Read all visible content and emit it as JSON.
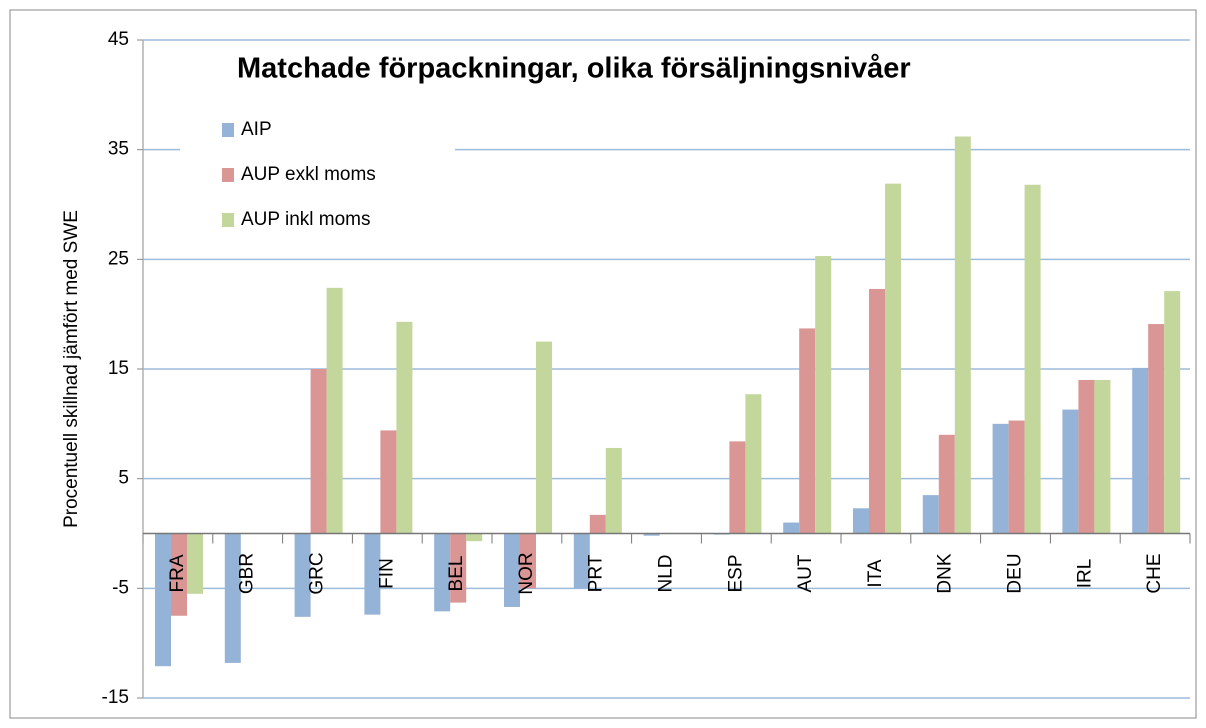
{
  "chart_data": {
    "type": "bar",
    "title": "Matchade förpackningar, olika försäljningsnivåer",
    "y_label": "Procentuell skillnad jämfört med SWE",
    "categories": [
      "FRA",
      "GBR",
      "GRC",
      "FIN",
      "BEL",
      "NOR",
      "PRT",
      "NLD",
      "ESP",
      "AUT",
      "ITA",
      "DNK",
      "DEU",
      "IRL",
      "CHE"
    ],
    "series": [
      {
        "name": "AIP",
        "color": "#95b3d7",
        "values": [
          -12.1,
          -11.8,
          -7.6,
          -7.4,
          -7.1,
          -6.7,
          -5.0,
          -0.2,
          -0.1,
          1.0,
          2.3,
          3.5,
          10.0,
          11.3,
          15.1
        ]
      },
      {
        "name": "AUP exkl moms",
        "color": "#d99694",
        "values": [
          -7.5,
          0,
          15.0,
          9.4,
          -6.3,
          -5.0,
          1.7,
          0,
          8.4,
          18.7,
          22.3,
          9.0,
          10.3,
          14.0,
          19.1
        ]
      },
      {
        "name": "AUP inkl moms",
        "color": "#c3d69b",
        "values": [
          -5.5,
          0,
          22.4,
          19.3,
          -0.7,
          17.5,
          7.8,
          0,
          12.7,
          25.3,
          31.9,
          36.2,
          31.8,
          14.0,
          22.1
        ]
      }
    ],
    "ylim": [
      -15,
      45
    ],
    "yticks": [
      -15,
      -5,
      5,
      15,
      25,
      35,
      45
    ],
    "grid": true,
    "legend": "upper left"
  }
}
